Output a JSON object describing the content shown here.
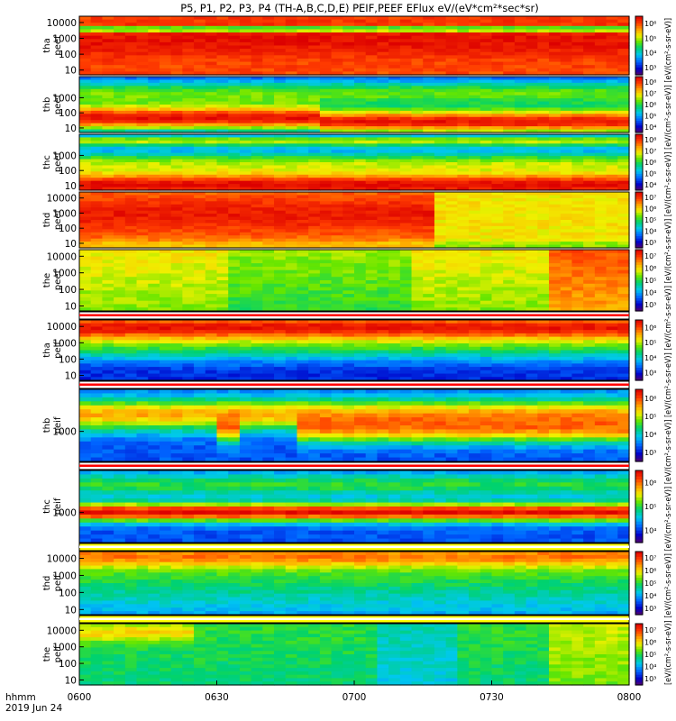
{
  "chart_data": {
    "type": "heatmap",
    "title": "P5, P1, P2, P3, P4 (TH-A,B,C,D,E) PEIF,PEEF EFlux eV/(eV*cm²*sec*sr)",
    "xaxis": {
      "corner_label": "hhmm",
      "date_label": "2019 Jun 24",
      "ticks": [
        "0600",
        "0630",
        "0700",
        "0730",
        "0800"
      ],
      "range": [
        "06:00",
        "08:00"
      ]
    },
    "colorbar_unit_label": "[eV/(cm²-s-sr-eV)] [eV/(cm²-s-sr-eV)] [eV/(cm²-s-sr-eV)] [eV/(cm²-s-sr-eV)] [eV/(cm²-s-sr-eV)] [eV/(cm²-s-sr-eV)] [eV/(cm²-s-sr-eV)] [eV/(cm²-s-sr-eV)] [eV/(cm²-s-sr-eV)] [eV/(cm²-s-sr-eV)]",
    "yscale": "log",
    "panels": [
      {
        "probe": "tha",
        "species": "peef",
        "y_ticks": [
          "10000",
          "1000",
          "100",
          "10"
        ],
        "yrange": [
          5,
          25000
        ],
        "colorbar_ticks": [
          "10⁶",
          "10⁵",
          "10⁴",
          "10³"
        ],
        "clim": [
          1000,
          1000000
        ],
        "pattern": "electron-a"
      },
      {
        "probe": "thb",
        "species": "peef",
        "y_ticks": [
          "1000",
          "100",
          "10"
        ],
        "yrange": [
          5,
          25000
        ],
        "colorbar_ticks": [
          "10⁸",
          "10⁷",
          "10⁶",
          "10⁵",
          "10⁴"
        ],
        "clim": [
          10000,
          100000000
        ],
        "pattern": "electron-b"
      },
      {
        "probe": "thc",
        "species": "peef",
        "y_ticks": [
          "1000",
          "100",
          "10"
        ],
        "yrange": [
          5,
          25000
        ],
        "colorbar_ticks": [
          "10⁸",
          "10⁷",
          "10⁶",
          "10⁵",
          "10⁴"
        ],
        "clim": [
          10000,
          100000000
        ],
        "pattern": "electron-c"
      },
      {
        "probe": "thd",
        "species": "peef",
        "y_ticks": [
          "10000",
          "1000",
          "100",
          "10"
        ],
        "yrange": [
          5,
          25000
        ],
        "colorbar_ticks": [
          "10⁷",
          "10⁶",
          "10⁵",
          "10⁴",
          "10³"
        ],
        "clim": [
          1000,
          10000000
        ],
        "pattern": "electron-d"
      },
      {
        "probe": "the",
        "species": "peef",
        "y_ticks": [
          "10000",
          "1000",
          "100",
          "10"
        ],
        "yrange": [
          5,
          25000
        ],
        "colorbar_ticks": [
          "10⁷",
          "10⁶",
          "10⁵",
          "10⁴",
          "10³"
        ],
        "clim": [
          1000,
          10000000
        ],
        "pattern": "electron-e"
      },
      {
        "probe": "tha",
        "species": "peif",
        "y_ticks": [
          "10000",
          "1000",
          "100",
          "10"
        ],
        "yrange": [
          5,
          25000
        ],
        "colorbar_ticks": [
          "10⁶",
          "10⁵",
          "10⁴",
          "10³"
        ],
        "clim": [
          1000,
          1000000
        ],
        "pattern": "ion-a"
      },
      {
        "probe": "thb",
        "species": "peif",
        "y_ticks": [
          "1000"
        ],
        "yrange": [
          100,
          25000
        ],
        "colorbar_ticks": [
          "10⁶",
          "10⁵",
          "10⁴",
          "10³"
        ],
        "clim": [
          1000,
          1000000
        ],
        "pattern": "ion-b"
      },
      {
        "probe": "thc",
        "species": "peif",
        "y_ticks": [
          "1000"
        ],
        "yrange": [
          100,
          25000
        ],
        "colorbar_ticks": [
          "10⁶",
          "10⁵",
          "10⁴"
        ],
        "clim": [
          10000,
          1000000
        ],
        "pattern": "ion-c"
      },
      {
        "probe": "thd",
        "species": "peif",
        "y_ticks": [
          "10000",
          "1000",
          "100",
          "10"
        ],
        "yrange": [
          5,
          25000
        ],
        "colorbar_ticks": [
          "10⁷",
          "10⁶",
          "10⁵",
          "10⁴",
          "10³"
        ],
        "clim": [
          1000,
          10000000
        ],
        "pattern": "ion-d"
      },
      {
        "probe": "the",
        "species": "peif",
        "y_ticks": [
          "10000",
          "1000",
          "100",
          "10"
        ],
        "yrange": [
          5,
          25000
        ],
        "colorbar_ticks": [
          "10⁷",
          "10⁶",
          "10⁵",
          "10⁴",
          "10³"
        ],
        "clim": [
          1000,
          10000000
        ],
        "pattern": "ion-e"
      }
    ]
  }
}
